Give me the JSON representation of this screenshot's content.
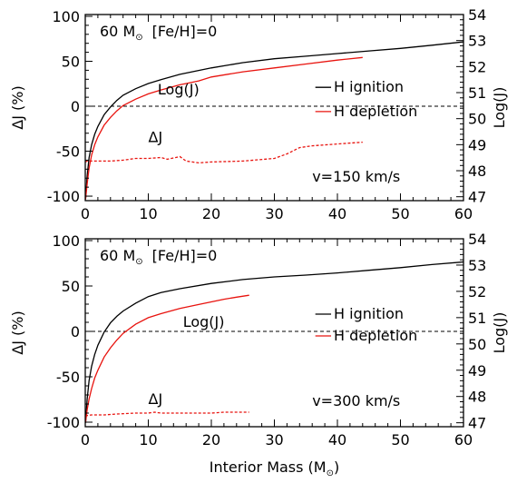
{
  "colors": {
    "black": "#000000",
    "red": "#e8130e",
    "frame": "#000000"
  },
  "chart_data": [
    {
      "type": "line",
      "annotations": {
        "title_mass": "60 M",
        "title_sun": "⊙",
        "title_metal": "[Fe/H]=0",
        "logj": "Log(J)",
        "dj": "ΔJ",
        "velocity": "v=150 km/s"
      },
      "legend": {
        "placement": "center-right",
        "entries": [
          "H ignition",
          "H depletion"
        ]
      },
      "xlabel": "",
      "ylabel": "ΔJ (%)",
      "y2label": "Log(J)",
      "xlim": [
        0,
        60
      ],
      "ylim": [
        -105,
        102
      ],
      "y2lim": [
        46.85,
        54.0
      ],
      "xticks": [
        0,
        10,
        20,
        30,
        40,
        50,
        60
      ],
      "yticks": [
        -100,
        -50,
        0,
        50,
        100
      ],
      "y2ticks": [
        47,
        48,
        49,
        50,
        51,
        52,
        53,
        54
      ],
      "series": [
        {
          "name": "H ignition",
          "axis": "right",
          "color": "#000000",
          "dash": "solid",
          "x": [
            0.05,
            0.3,
            0.6,
            1,
            1.5,
            2,
            3,
            4,
            5,
            6,
            8,
            10,
            12,
            15,
            20,
            25,
            30,
            35,
            40,
            45,
            50,
            55,
            60
          ],
          "y": [
            46.9,
            47.8,
            48.5,
            49.0,
            49.4,
            49.7,
            50.15,
            50.45,
            50.7,
            50.9,
            51.15,
            51.35,
            51.5,
            51.7,
            51.95,
            52.15,
            52.3,
            52.4,
            52.5,
            52.6,
            52.7,
            52.82,
            52.95
          ]
        },
        {
          "name": "H depletion",
          "axis": "right",
          "color": "#e8130e",
          "dash": "solid",
          "x": [
            0.05,
            0.3,
            0.6,
            1,
            1.5,
            2,
            3,
            4,
            5,
            6,
            8,
            10,
            12,
            15,
            16,
            18,
            20,
            25,
            30,
            35,
            40,
            44
          ],
          "y": [
            46.9,
            47.5,
            48.1,
            48.6,
            49.0,
            49.3,
            49.75,
            50.05,
            50.3,
            50.5,
            50.75,
            50.95,
            51.1,
            51.3,
            51.35,
            51.45,
            51.6,
            51.8,
            51.95,
            52.1,
            52.25,
            52.35
          ]
        },
        {
          "name": "ΔJ",
          "axis": "left",
          "color": "#e8130e",
          "dash": "dashed",
          "x": [
            0,
            0.3,
            1,
            2,
            4,
            6,
            8,
            10,
            12,
            13,
            15,
            16,
            18,
            20,
            25,
            30,
            32,
            34,
            36,
            40,
            44
          ],
          "y": [
            -62,
            -61,
            -61,
            -61,
            -61,
            -60,
            -58,
            -58,
            -57,
            -59,
            -56,
            -61,
            -63,
            -62,
            -61,
            -58,
            -53,
            -46,
            -44,
            -42,
            -40
          ]
        }
      ]
    },
    {
      "type": "line",
      "annotations": {
        "title_mass": "60 M",
        "title_sun": "⊙",
        "title_metal": "[Fe/H]=0",
        "logj": "Log(J)",
        "dj": "ΔJ",
        "velocity": "v=300 km/s"
      },
      "legend": {
        "placement": "center-right",
        "entries": [
          "H ignition",
          "H depletion"
        ]
      },
      "xlabel": "Interior Mass (M",
      "xlabel_sun": "⊙",
      "xlabel_close": ")",
      "ylabel": "ΔJ (%)",
      "y2label": "Log(J)",
      "xlim": [
        0,
        60
      ],
      "ylim": [
        -105,
        102
      ],
      "y2lim": [
        46.85,
        54.0
      ],
      "xticks": [
        0,
        10,
        20,
        30,
        40,
        50,
        60
      ],
      "yticks": [
        -100,
        -50,
        0,
        50,
        100
      ],
      "y2ticks": [
        47,
        48,
        49,
        50,
        51,
        52,
        53,
        54
      ],
      "series": [
        {
          "name": "H ignition",
          "axis": "right",
          "color": "#000000",
          "dash": "solid",
          "x": [
            0.05,
            0.3,
            0.6,
            1,
            1.5,
            2,
            3,
            4,
            5,
            6,
            8,
            10,
            12,
            15,
            20,
            25,
            30,
            35,
            40,
            45,
            50,
            55,
            60
          ],
          "y": [
            47.0,
            47.9,
            48.6,
            49.15,
            49.6,
            49.95,
            50.45,
            50.8,
            51.05,
            51.25,
            51.55,
            51.8,
            51.95,
            52.1,
            52.3,
            52.45,
            52.55,
            52.62,
            52.7,
            52.8,
            52.9,
            53.02,
            53.12
          ]
        },
        {
          "name": "H depletion",
          "axis": "right",
          "color": "#e8130e",
          "dash": "solid",
          "x": [
            0.05,
            0.3,
            0.6,
            1,
            1.5,
            2,
            3,
            4,
            5,
            6,
            8,
            10,
            12,
            15,
            18,
            20,
            22,
            24,
            26
          ],
          "y": [
            47.0,
            47.5,
            47.9,
            48.3,
            48.7,
            49.0,
            49.5,
            49.85,
            50.15,
            50.4,
            50.75,
            51.0,
            51.15,
            51.35,
            51.5,
            51.6,
            51.7,
            51.78,
            51.85
          ]
        },
        {
          "name": "ΔJ",
          "axis": "left",
          "color": "#e8130e",
          "dash": "dashed",
          "x": [
            0,
            1,
            3,
            5,
            8,
            10,
            11,
            12,
            15,
            18,
            20,
            22,
            24,
            26
          ],
          "y": [
            -93,
            -92,
            -92,
            -91,
            -90,
            -90,
            -89,
            -90,
            -90,
            -90,
            -90,
            -89,
            -89,
            -89
          ]
        }
      ]
    }
  ]
}
